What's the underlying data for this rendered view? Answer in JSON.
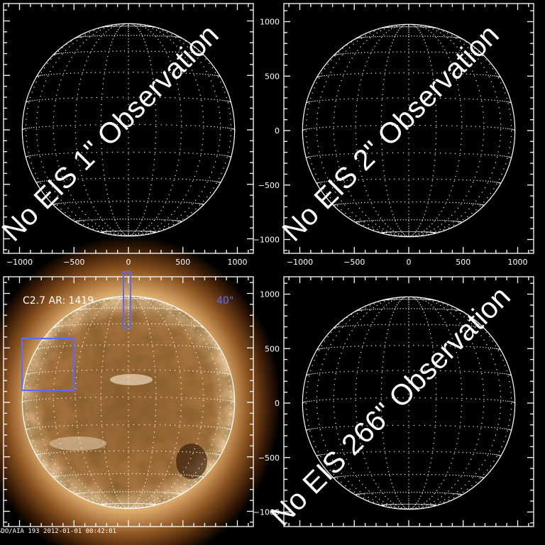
{
  "axes": {
    "range": [
      -1150,
      1150
    ],
    "major_ticks": [
      -1000,
      -500,
      0,
      500,
      1000
    ],
    "tick_labels": [
      "−1000",
      "−500",
      "0",
      "500",
      "1000"
    ],
    "solar_radius_arcsec": 975
  },
  "panels": [
    {
      "id": "eis-1",
      "overlay_text": "No EIS 1\" Observation",
      "show_xlabels": true,
      "show_ylabels": false,
      "image": false
    },
    {
      "id": "eis-2",
      "overlay_text": "No EIS 2\" Observation",
      "show_xlabels": true,
      "show_ylabels": true,
      "image": false
    },
    {
      "id": "aia",
      "flare_label": "C2.7 AR: 1419",
      "slit_label": "40\"",
      "footer": "SDO/AIA 193   2012-01-01 00:42:01",
      "show_xlabels": false,
      "show_ylabels": false,
      "image": true
    },
    {
      "id": "eis-266",
      "overlay_text": "No EIS 266\" Observation",
      "show_xlabels": false,
      "show_ylabels": true,
      "image": false
    }
  ],
  "colors": {
    "axes": "#ffffff",
    "fov_box": "#5a6cff",
    "aia_tint": "#b07a40"
  }
}
